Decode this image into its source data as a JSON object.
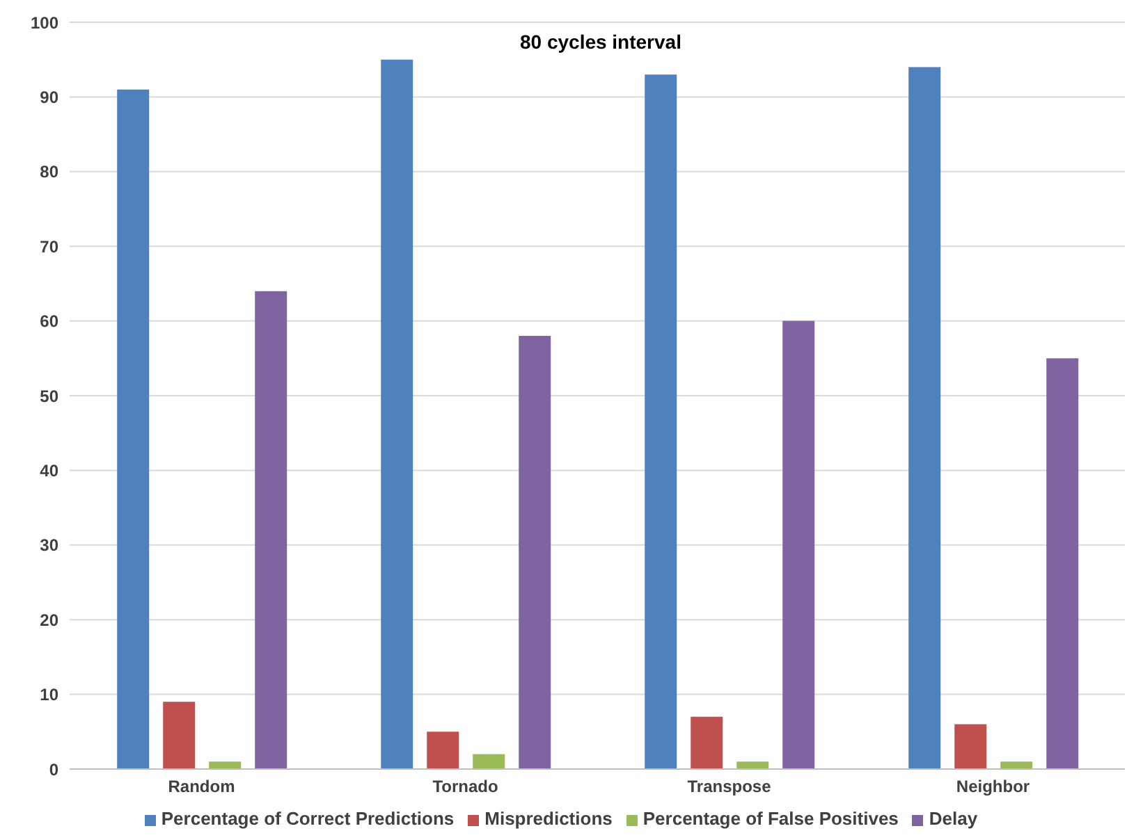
{
  "chart_data": {
    "type": "bar",
    "title": "80 cycles interval",
    "categories": [
      "Random",
      "Tornado",
      "Transpose",
      "Neighbor"
    ],
    "series": [
      {
        "name": "Percentage of Correct Predictions",
        "color": "#4f81bd",
        "values": [
          91,
          95,
          93,
          94
        ]
      },
      {
        "name": "Mispredictions",
        "color": "#c0504d",
        "values": [
          9,
          5,
          7,
          6
        ]
      },
      {
        "name": "Percentage of False Positives",
        "color": "#9bbb59",
        "values": [
          1,
          2,
          1,
          1
        ]
      },
      {
        "name": "Delay",
        "color": "#8064a2",
        "values": [
          64,
          58,
          60,
          55
        ]
      }
    ],
    "ylim": [
      0,
      100
    ],
    "yticks": [
      0,
      10,
      20,
      30,
      40,
      50,
      60,
      70,
      80,
      90,
      100
    ],
    "grid": "y",
    "legend": "bottom"
  }
}
